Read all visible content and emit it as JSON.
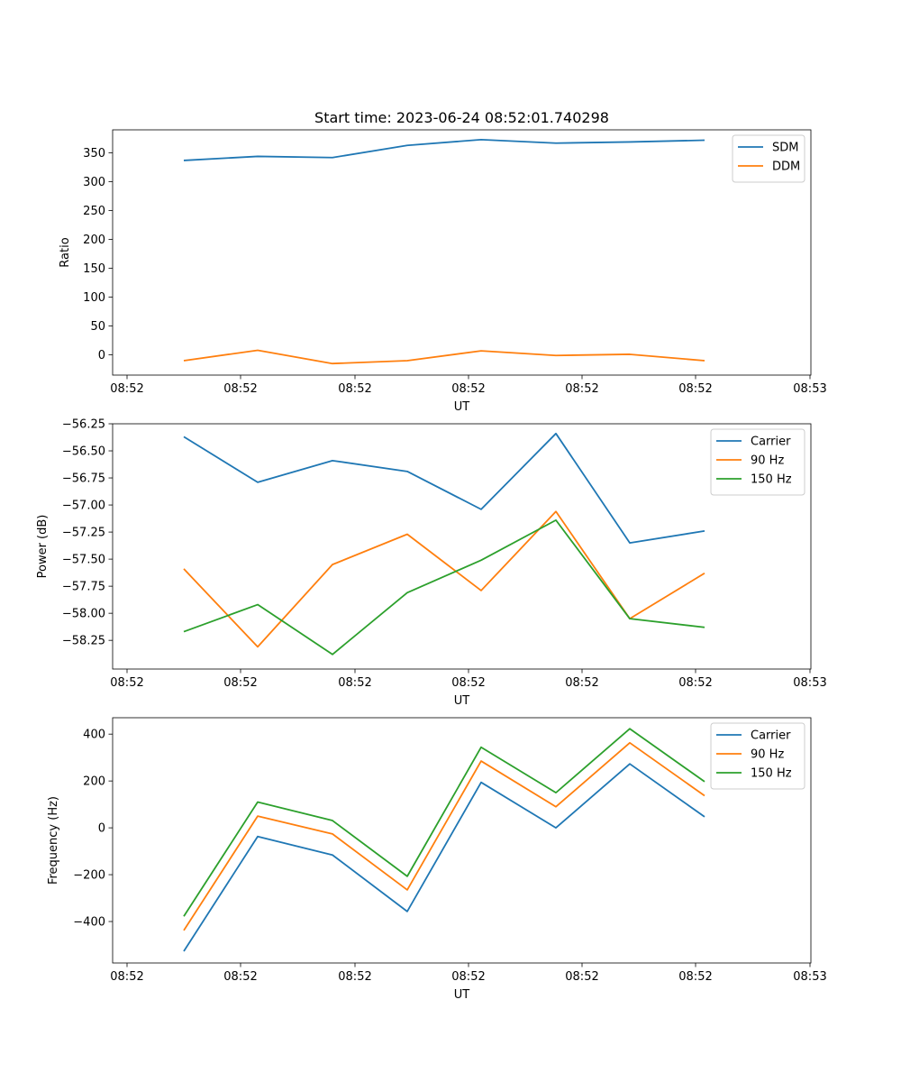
{
  "chart_data": [
    {
      "type": "line",
      "title": "Start time: 2023-06-24 08:52:01.740298",
      "xlabel": "UT",
      "ylabel": "Ratio",
      "x_tick_labels": [
        "08:52",
        "08:52",
        "08:52",
        "08:52",
        "08:52",
        "08:52",
        "08:53"
      ],
      "y_ticks": [
        0,
        50,
        100,
        150,
        200,
        250,
        300,
        350
      ],
      "y_tick_labels": [
        "0",
        "50",
        "100",
        "150",
        "200",
        "250",
        "300",
        "350"
      ],
      "ylim": [
        -35,
        390
      ],
      "legend_position": "top-right",
      "series": [
        {
          "name": "SDM",
          "color": "#1f77b4",
          "values": [
            337,
            344,
            342,
            363,
            373,
            367,
            369,
            372
          ]
        },
        {
          "name": "DDM",
          "color": "#ff7f0e",
          "values": [
            -10,
            8,
            -15,
            -10,
            7,
            -1,
            1,
            -10
          ]
        }
      ]
    },
    {
      "type": "line",
      "title": "",
      "xlabel": "UT",
      "ylabel": "Power (dB)",
      "x_tick_labels": [
        "08:52",
        "08:52",
        "08:52",
        "08:52",
        "08:52",
        "08:52",
        "08:53"
      ],
      "y_ticks": [
        -58.25,
        -58.0,
        -57.75,
        -57.5,
        -57.25,
        -57.0,
        -56.75,
        -56.5,
        -56.25
      ],
      "y_tick_labels": [
        "−58.25",
        "−58.00",
        "−57.75",
        "−57.50",
        "−57.25",
        "−57.00",
        "−56.75",
        "−56.50",
        "−56.25"
      ],
      "ylim": [
        -58.515,
        -56.25
      ],
      "legend_position": "top-right",
      "series": [
        {
          "name": "Carrier",
          "color": "#1f77b4",
          "values": [
            -56.37,
            -56.79,
            -56.59,
            -56.69,
            -57.04,
            -56.34,
            -57.35,
            -57.24
          ]
        },
        {
          "name": "90 Hz",
          "color": "#ff7f0e",
          "values": [
            -57.59,
            -58.31,
            -57.55,
            -57.27,
            -57.79,
            -57.06,
            -58.05,
            -57.63
          ]
        },
        {
          "name": "150 Hz",
          "color": "#2ca02c",
          "values": [
            -58.17,
            -57.92,
            -58.38,
            -57.81,
            -57.51,
            -57.14,
            -58.05,
            -58.13
          ]
        }
      ]
    },
    {
      "type": "line",
      "title": "",
      "xlabel": "UT",
      "ylabel": "Frequency (Hz)",
      "x_tick_labels": [
        "08:52",
        "08:52",
        "08:52",
        "08:52",
        "08:52",
        "08:52",
        "08:53"
      ],
      "y_ticks": [
        -400,
        -200,
        0,
        200,
        400
      ],
      "y_tick_labels": [
        "−400",
        "−200",
        "0",
        "200",
        "400"
      ],
      "ylim": [
        -577,
        470
      ],
      "legend_position": "top-right",
      "series": [
        {
          "name": "Carrier",
          "color": "#1f77b4",
          "values": [
            -527,
            -37,
            -116,
            -357,
            194,
            0,
            273,
            47
          ]
        },
        {
          "name": "90 Hz",
          "color": "#ff7f0e",
          "values": [
            -438,
            50,
            -26,
            -265,
            285,
            90,
            363,
            137
          ]
        },
        {
          "name": "150 Hz",
          "color": "#2ca02c",
          "values": [
            -378,
            110,
            31,
            -207,
            344,
            150,
            423,
            197
          ]
        }
      ]
    }
  ]
}
